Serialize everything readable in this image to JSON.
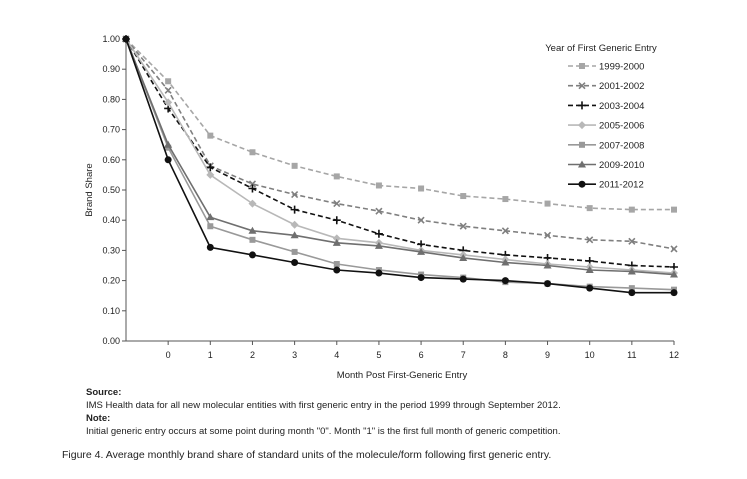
{
  "chart_data": {
    "type": "line",
    "title": "",
    "xlabel": "Month Post First-Generic Entry",
    "ylabel": "Brand Share",
    "x": [
      -1,
      0,
      1,
      2,
      3,
      4,
      5,
      6,
      7,
      8,
      9,
      10,
      11,
      12
    ],
    "x_tick_labels": [
      "0",
      "1",
      "2",
      "3",
      "4",
      "5",
      "6",
      "7",
      "8",
      "9",
      "10",
      "11",
      "12"
    ],
    "y_tick_labels": [
      "0.00",
      "0.10",
      "0.20",
      "0.30",
      "0.40",
      "0.50",
      "0.60",
      "0.70",
      "0.80",
      "0.90",
      "1.00"
    ],
    "xlim": [
      -1,
      12
    ],
    "ylim": [
      0,
      1
    ],
    "grid": false,
    "legend_title": "Year of First Generic Entry",
    "legend_position": "top-right",
    "series": [
      {
        "name": "1999-2000",
        "color": "#a6a6a6",
        "dash": "dashed",
        "marker": "square",
        "values": [
          1.0,
          0.86,
          0.68,
          0.625,
          0.58,
          0.545,
          0.515,
          0.505,
          0.48,
          0.47,
          0.455,
          0.44,
          0.435,
          0.435
        ]
      },
      {
        "name": "2001-2002",
        "color": "#7f7f7f",
        "dash": "dashed",
        "marker": "x",
        "values": [
          1.0,
          0.83,
          0.58,
          0.52,
          0.485,
          0.455,
          0.43,
          0.4,
          0.38,
          0.365,
          0.35,
          0.335,
          0.33,
          0.305
        ]
      },
      {
        "name": "2003-2004",
        "color": "#111111",
        "dash": "dashed",
        "marker": "plus",
        "values": [
          1.0,
          0.77,
          0.575,
          0.505,
          0.435,
          0.4,
          0.355,
          0.32,
          0.3,
          0.285,
          0.275,
          0.265,
          0.25,
          0.245
        ]
      },
      {
        "name": "2005-2006",
        "color": "#b8b8b8",
        "dash": "solid",
        "marker": "diamond",
        "values": [
          1.0,
          0.79,
          0.55,
          0.455,
          0.385,
          0.34,
          0.325,
          0.3,
          0.285,
          0.27,
          0.255,
          0.245,
          0.235,
          0.225
        ]
      },
      {
        "name": "2007-2008",
        "color": "#999999",
        "dash": "solid",
        "marker": "square",
        "values": [
          1.0,
          0.64,
          0.38,
          0.335,
          0.295,
          0.255,
          0.235,
          0.22,
          0.21,
          0.195,
          0.19,
          0.18,
          0.175,
          0.17
        ]
      },
      {
        "name": "2009-2010",
        "color": "#6f6f6f",
        "dash": "solid",
        "marker": "triangle",
        "values": [
          1.0,
          0.65,
          0.41,
          0.365,
          0.35,
          0.325,
          0.315,
          0.295,
          0.275,
          0.26,
          0.25,
          0.235,
          0.23,
          0.22
        ]
      },
      {
        "name": "2011-2012",
        "color": "#111111",
        "dash": "solid",
        "marker": "circle",
        "values": [
          1.0,
          0.6,
          0.31,
          0.285,
          0.26,
          0.235,
          0.225,
          0.21,
          0.205,
          0.2,
          0.19,
          0.175,
          0.16,
          0.16
        ]
      }
    ]
  },
  "notes": {
    "source_heading": "Source:",
    "source_text": "IMS Health data for all new molecular entities with first generic entry in the period 1999 through September 2012.",
    "note_heading": "Note:",
    "note_text": "Initial generic entry occurs at some point during month \"0\".  Month \"1\" is the first full month of generic competition."
  },
  "caption": "Figure 4.  Average monthly brand share of standard units of the molecule/form following first generic entry."
}
